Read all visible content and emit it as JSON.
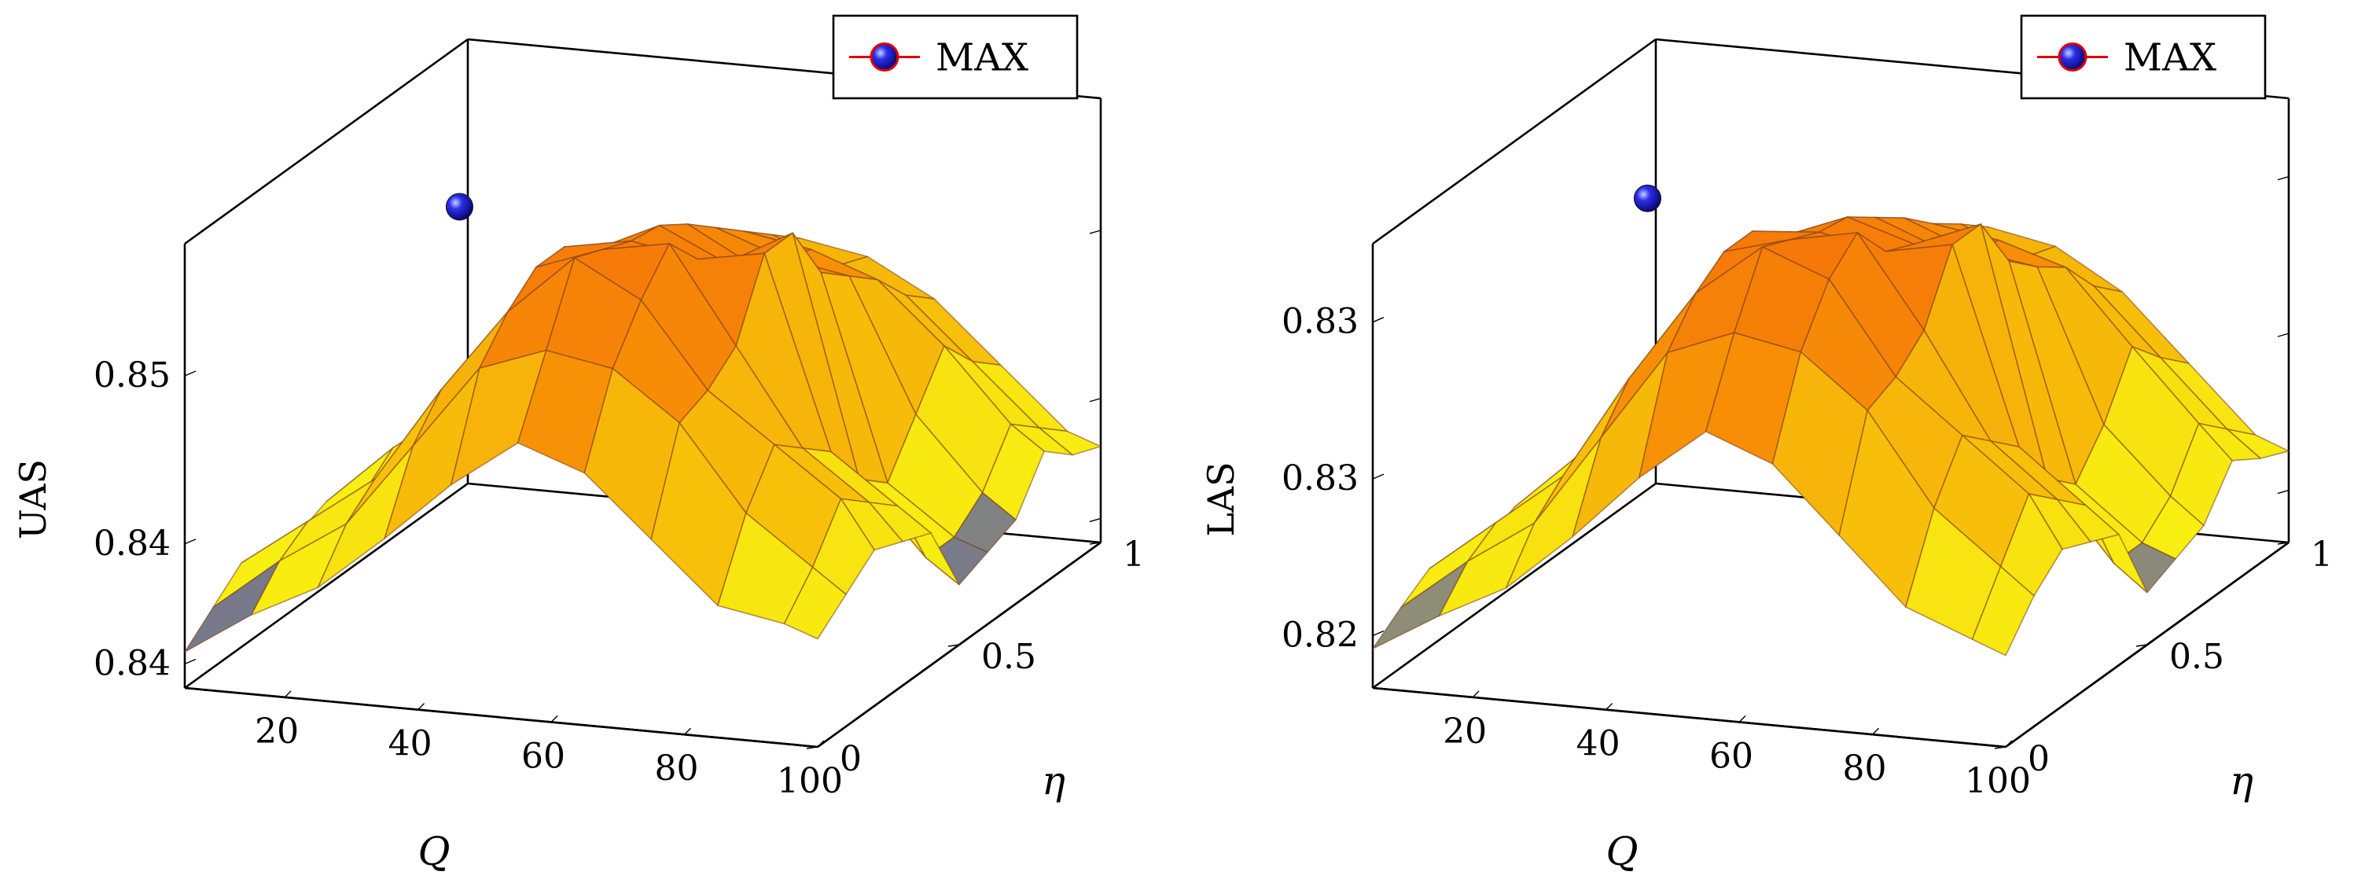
{
  "charts": [
    {
      "type": "surface3d",
      "zlabel": "UAS",
      "xlabel": "Q",
      "ylabel": "η",
      "x": [
        5,
        15,
        25,
        35,
        45,
        55,
        65,
        75,
        85,
        95,
        100
      ],
      "y": [
        0,
        0.1,
        0.2,
        0.3,
        0.4,
        0.5,
        0.6,
        0.7,
        0.8,
        0.9,
        1.0
      ],
      "xlim": [
        5,
        100
      ],
      "ylim": [
        0,
        1
      ],
      "zlim": [
        0.8385,
        0.857
      ],
      "x_ticks": [
        20,
        40,
        60,
        80,
        100
      ],
      "y_ticks": [
        0,
        0.5,
        1
      ],
      "z_ticks": [
        0.8395,
        0.8445,
        0.8515
      ],
      "x_tick_labels": [
        "20",
        "40",
        "60",
        "80",
        "100"
      ],
      "y_tick_labels": [
        "0",
        "0.5",
        "1"
      ],
      "z_tick_labels": [
        "0.84",
        "0.84",
        "0.85"
      ],
      "z_bands": [
        0.8425,
        0.8465,
        0.851
      ],
      "band_colors": [
        "#4a4fb6",
        "#f8ef12",
        "#f7c30a",
        "#f79206",
        "#f23a10"
      ],
      "z": [
        [
          0.84,
          0.8418,
          0.8432,
          0.8455,
          0.848,
          0.85,
          0.849,
          0.8465,
          0.844,
          0.8435,
          0.843
        ],
        [
          0.841,
          0.8432,
          0.845,
          0.8485,
          0.852,
          0.853,
          0.8525,
          0.8505,
          0.847,
          0.845,
          0.844
        ],
        [
          0.842,
          0.844,
          0.846,
          0.85,
          0.8535,
          0.856,
          0.8545,
          0.851,
          0.849,
          0.847,
          0.845
        ],
        [
          0.841,
          0.843,
          0.8455,
          0.8495,
          0.8545,
          0.8555,
          0.856,
          0.852,
          0.848,
          0.846,
          0.8445
        ],
        [
          0.8415,
          0.8435,
          0.846,
          0.85,
          0.8545,
          0.855,
          0.8545,
          0.855,
          0.847,
          0.845,
          0.844
        ],
        [
          0.842,
          0.8445,
          0.8465,
          0.8505,
          0.8535,
          0.8548,
          0.8535,
          0.855,
          0.845,
          0.842,
          0.841
        ],
        [
          0.8412,
          0.8438,
          0.8458,
          0.8495,
          0.8525,
          0.854,
          0.8525,
          0.8525,
          0.844,
          0.842,
          0.8415
        ],
        [
          0.8408,
          0.843,
          0.8452,
          0.8488,
          0.8515,
          0.853,
          0.852,
          0.8515,
          0.846,
          0.843,
          0.842
        ],
        [
          0.8405,
          0.8425,
          0.8445,
          0.848,
          0.8505,
          0.852,
          0.8515,
          0.8505,
          0.848,
          0.845,
          0.844
        ],
        [
          0.841,
          0.8428,
          0.8448,
          0.8475,
          0.8495,
          0.851,
          0.85,
          0.849,
          0.8465,
          0.844,
          0.843
        ],
        [
          0.8415,
          0.843,
          0.8445,
          0.847,
          0.849,
          0.85,
          0.8495,
          0.848,
          0.8455,
          0.843,
          0.8425
        ]
      ],
      "max_point": {
        "x": 25,
        "y": 0.5,
        "z": 0.8548
      },
      "legend": {
        "label": "MAX",
        "position": "top-right"
      }
    },
    {
      "type": "surface3d",
      "zlabel": "LAS",
      "xlabel": "Q",
      "ylabel": "η",
      "x": [
        5,
        15,
        25,
        35,
        45,
        55,
        65,
        75,
        85,
        95,
        100
      ],
      "y": [
        0,
        0.1,
        0.2,
        0.3,
        0.4,
        0.5,
        0.6,
        0.7,
        0.8,
        0.9,
        1.0
      ],
      "xlim": [
        5,
        100
      ],
      "ylim": [
        0,
        1
      ],
      "zlim": [
        0.8175,
        0.8345
      ],
      "x_ticks": [
        20,
        40,
        60,
        80,
        100
      ],
      "y_ticks": [
        0,
        0.5,
        1
      ],
      "z_ticks": [
        0.8195,
        0.8255,
        0.8315
      ],
      "x_tick_labels": [
        "20",
        "40",
        "60",
        "80",
        "100"
      ],
      "y_tick_labels": [
        "0",
        "0.5",
        "1"
      ],
      "z_tick_labels": [
        "0.82",
        "0.83",
        "0.83"
      ],
      "z_bands": [
        0.8205,
        0.8245,
        0.829
      ],
      "band_colors": [
        "#5b5ea8",
        "#f8ef12",
        "#f7c30a",
        "#f79206",
        "#f23a10"
      ],
      "z": [
        [
          0.819,
          0.8205,
          0.8218,
          0.824,
          0.8265,
          0.8285,
          0.8275,
          0.825,
          0.8225,
          0.8215,
          0.821
        ],
        [
          0.8198,
          0.8218,
          0.8235,
          0.827,
          0.8305,
          0.8315,
          0.831,
          0.829,
          0.8255,
          0.8235,
          0.8225
        ],
        [
          0.8205,
          0.8225,
          0.8245,
          0.8285,
          0.832,
          0.834,
          0.833,
          0.8295,
          0.8275,
          0.8255,
          0.8235
        ],
        [
          0.8198,
          0.8215,
          0.824,
          0.828,
          0.8328,
          0.8335,
          0.834,
          0.8305,
          0.8265,
          0.8245,
          0.823
        ],
        [
          0.82,
          0.822,
          0.8245,
          0.8285,
          0.8328,
          0.833,
          0.8325,
          0.833,
          0.8255,
          0.8235,
          0.8225
        ],
        [
          0.8205,
          0.8228,
          0.8248,
          0.829,
          0.8318,
          0.8328,
          0.832,
          0.833,
          0.8235,
          0.8205,
          0.8195
        ],
        [
          0.8198,
          0.8222,
          0.8242,
          0.828,
          0.8308,
          0.832,
          0.831,
          0.8308,
          0.8225,
          0.8205,
          0.82
        ],
        [
          0.8195,
          0.8215,
          0.8236,
          0.8272,
          0.8298,
          0.8312,
          0.8302,
          0.8298,
          0.824,
          0.8215,
          0.8205
        ],
        [
          0.8192,
          0.821,
          0.823,
          0.8265,
          0.8288,
          0.8302,
          0.8298,
          0.829,
          0.8262,
          0.8235,
          0.8222
        ],
        [
          0.8196,
          0.8214,
          0.8234,
          0.826,
          0.828,
          0.8294,
          0.8284,
          0.8275,
          0.825,
          0.8225,
          0.8215
        ],
        [
          0.82,
          0.8215,
          0.823,
          0.8255,
          0.8275,
          0.8285,
          0.828,
          0.8265,
          0.824,
          0.8215,
          0.821
        ]
      ],
      "max_point": {
        "x": 25,
        "y": 0.5,
        "z": 0.8328
      },
      "legend": {
        "label": "MAX",
        "position": "top-right"
      }
    }
  ]
}
